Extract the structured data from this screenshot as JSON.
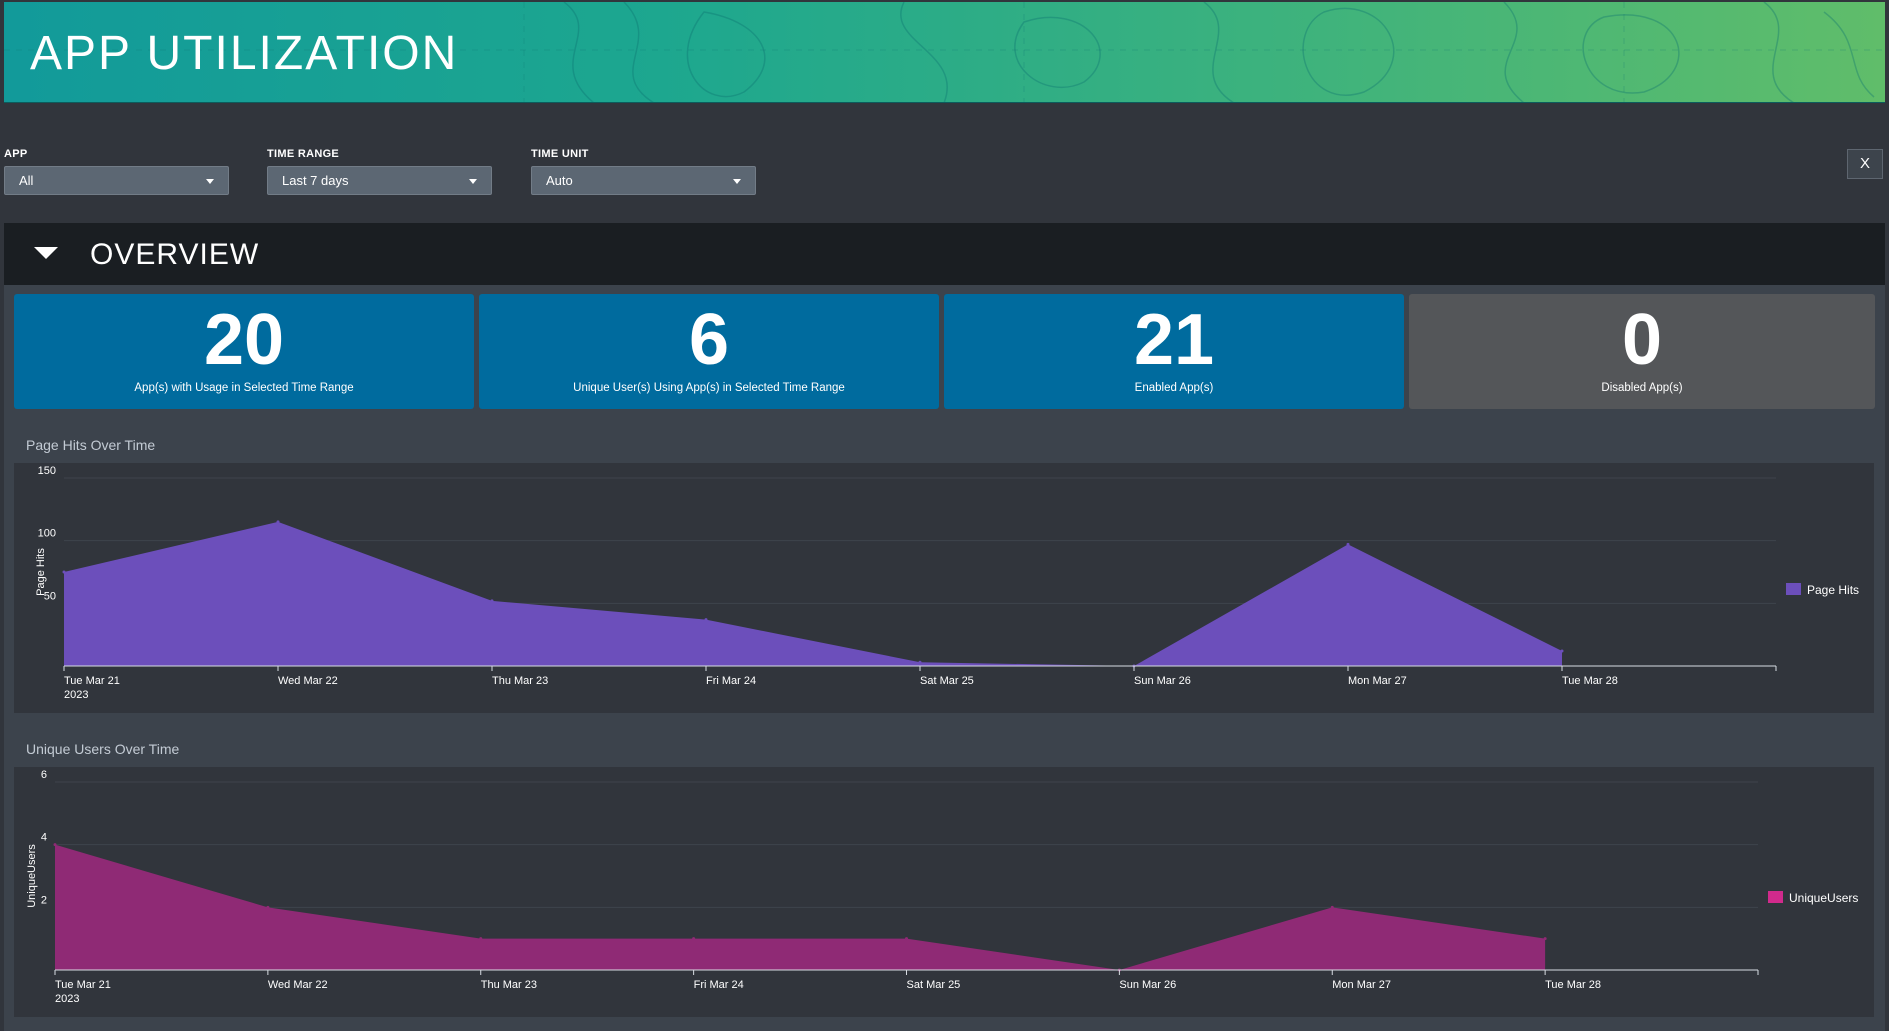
{
  "header": {
    "title": "APP UTILIZATION"
  },
  "filters": {
    "app": {
      "label": "APP",
      "value": "All"
    },
    "time_range": {
      "label": "TIME RANGE",
      "value": "Last 7 days"
    },
    "time_unit": {
      "label": "TIME UNIT",
      "value": "Auto"
    },
    "close_label": "X"
  },
  "overview": {
    "title": "OVERVIEW"
  },
  "stats": [
    {
      "value": "20",
      "caption": "App(s) with Usage in Selected Time Range",
      "color": "#006b9e"
    },
    {
      "value": "6",
      "caption": "Unique User(s) Using App(s) in Selected Time Range",
      "color": "#006b9e"
    },
    {
      "value": "21",
      "caption": "Enabled App(s)",
      "color": "#006b9e"
    },
    {
      "value": "0",
      "caption": "Disabled App(s)",
      "color": "#545659"
    }
  ],
  "chart_data": [
    {
      "type": "area",
      "title": "Page Hits Over Time",
      "ylabel": "Page Hits",
      "xlabel": "",
      "categories": [
        "Tue Mar 21",
        "Wed Mar 22",
        "Thu Mar 23",
        "Fri Mar 24",
        "Sat Mar 25",
        "Sun Mar 26",
        "Mon Mar 27",
        "Tue Mar 28"
      ],
      "year_label": "2023",
      "yticks": [
        50,
        100,
        150
      ],
      "ylim": [
        0,
        150
      ],
      "series": [
        {
          "name": "Page Hits",
          "color": "#6c4fbb",
          "values": [
            75,
            115,
            52,
            37,
            3,
            0,
            97,
            12
          ]
        }
      ],
      "legend": "right",
      "grid": true
    },
    {
      "type": "area",
      "title": "Unique Users Over Time",
      "ylabel": "UniqueUsers",
      "xlabel": "",
      "categories": [
        "Tue Mar 21",
        "Wed Mar 22",
        "Thu Mar 23",
        "Fri Mar 24",
        "Sat Mar 25",
        "Sun Mar 26",
        "Mon Mar 27",
        "Tue Mar 28"
      ],
      "year_label": "2023",
      "yticks": [
        2,
        4,
        6
      ],
      "ylim": [
        0,
        6
      ],
      "series": [
        {
          "name": "UniqueUsers",
          "color": "#8f2a75",
          "legend_color": "#d12a8c",
          "values": [
            4,
            2,
            1,
            1,
            1,
            0,
            2,
            1
          ]
        }
      ],
      "legend": "right",
      "grid": true
    }
  ]
}
